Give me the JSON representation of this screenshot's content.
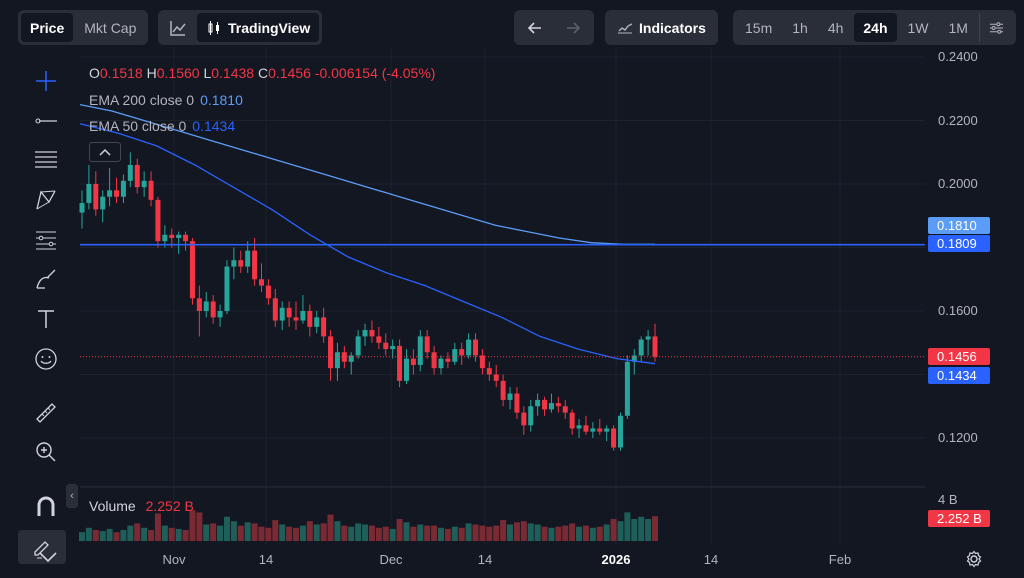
{
  "topbar": {
    "price_label": "Price",
    "mktcap_label": "Mkt Cap",
    "tradingview_label": "TradingView",
    "indicators_label": "Indicators",
    "timeframes": [
      "15m",
      "1h",
      "4h",
      "24h",
      "1W",
      "1M"
    ],
    "active_timeframe": "24h"
  },
  "legend": {
    "o_label": "O",
    "o": "0.1518",
    "h_label": "H",
    "h": "0.1560",
    "l_label": "L",
    "l": "0.1438",
    "c_label": "C",
    "c": "0.1456",
    "change": "-0.006154 (-4.05%)",
    "ema200_label": "EMA 200 close 0",
    "ema200_value": "0.1810",
    "ema50_label": "EMA 50 close 0",
    "ema50_value": "0.1434"
  },
  "volume_legend": {
    "label": "Volume",
    "value": "2.252 B"
  },
  "price_axis": [
    "0.2400",
    "0.2200",
    "0.2000",
    "0.1600",
    "0.1200"
  ],
  "volume_axis_label": "4 B",
  "price_tags": {
    "ema200": "0.1810",
    "hline": "0.1809",
    "last": "0.1456",
    "ema50": "0.1434",
    "volume": "2.252 B"
  },
  "time_axis": [
    "Nov",
    "14",
    "Dec",
    "14",
    "2026",
    "14",
    "Feb"
  ],
  "colors": {
    "up": "#26a69a",
    "down": "#f23645",
    "ema200": "#5b9cf6",
    "ema50": "#2962ff",
    "hline": "#2962ff",
    "background": "#131722"
  },
  "tools": [
    "crosshair-icon",
    "trend-line-icon",
    "horizontal-lines-icon",
    "pattern-icon",
    "fib-icon",
    "brush-icon",
    "text-icon",
    "emoji-icon",
    "ruler-icon",
    "zoom-icon",
    "magnet-icon",
    "lock-draw-icon"
  ],
  "chart_data": {
    "type": "candlestick",
    "y_range": [
      0.105,
      0.245
    ],
    "candles": [
      [
        0.191,
        0.198,
        0.186,
        0.194
      ],
      [
        0.194,
        0.206,
        0.192,
        0.2
      ],
      [
        0.2,
        0.204,
        0.19,
        0.192
      ],
      [
        0.192,
        0.198,
        0.188,
        0.196
      ],
      [
        0.196,
        0.205,
        0.193,
        0.198
      ],
      [
        0.198,
        0.202,
        0.194,
        0.196
      ],
      [
        0.196,
        0.203,
        0.194,
        0.201
      ],
      [
        0.201,
        0.21,
        0.199,
        0.206
      ],
      [
        0.206,
        0.208,
        0.197,
        0.199
      ],
      [
        0.199,
        0.204,
        0.196,
        0.201
      ],
      [
        0.201,
        0.204,
        0.193,
        0.195
      ],
      [
        0.195,
        0.196,
        0.18,
        0.182
      ],
      [
        0.182,
        0.187,
        0.18,
        0.184
      ],
      [
        0.184,
        0.186,
        0.18,
        0.183
      ],
      [
        0.183,
        0.185,
        0.178,
        0.184
      ],
      [
        0.184,
        0.185,
        0.179,
        0.182
      ],
      [
        0.182,
        0.183,
        0.162,
        0.164
      ],
      [
        0.164,
        0.168,
        0.152,
        0.16
      ],
      [
        0.16,
        0.166,
        0.158,
        0.163
      ],
      [
        0.163,
        0.165,
        0.156,
        0.158
      ],
      [
        0.158,
        0.162,
        0.155,
        0.16
      ],
      [
        0.16,
        0.176,
        0.159,
        0.174
      ],
      [
        0.174,
        0.18,
        0.17,
        0.176
      ],
      [
        0.176,
        0.179,
        0.172,
        0.174
      ],
      [
        0.174,
        0.182,
        0.172,
        0.179
      ],
      [
        0.179,
        0.183,
        0.168,
        0.17
      ],
      [
        0.17,
        0.175,
        0.166,
        0.168
      ],
      [
        0.168,
        0.17,
        0.162,
        0.164
      ],
      [
        0.164,
        0.167,
        0.155,
        0.157
      ],
      [
        0.157,
        0.163,
        0.154,
        0.161
      ],
      [
        0.161,
        0.163,
        0.155,
        0.158
      ],
      [
        0.158,
        0.163,
        0.154,
        0.157
      ],
      [
        0.157,
        0.165,
        0.156,
        0.16
      ],
      [
        0.16,
        0.162,
        0.152,
        0.155
      ],
      [
        0.155,
        0.16,
        0.153,
        0.158
      ],
      [
        0.158,
        0.161,
        0.15,
        0.152
      ],
      [
        0.152,
        0.154,
        0.138,
        0.142
      ],
      [
        0.142,
        0.15,
        0.138,
        0.147
      ],
      [
        0.147,
        0.149,
        0.142,
        0.144
      ],
      [
        0.144,
        0.147,
        0.14,
        0.146
      ],
      [
        0.146,
        0.154,
        0.145,
        0.152
      ],
      [
        0.152,
        0.156,
        0.149,
        0.154
      ],
      [
        0.154,
        0.157,
        0.15,
        0.152
      ],
      [
        0.152,
        0.155,
        0.148,
        0.15
      ],
      [
        0.15,
        0.153,
        0.146,
        0.148
      ],
      [
        0.148,
        0.151,
        0.145,
        0.149
      ],
      [
        0.149,
        0.151,
        0.136,
        0.138
      ],
      [
        0.138,
        0.148,
        0.137,
        0.145
      ],
      [
        0.145,
        0.148,
        0.14,
        0.143
      ],
      [
        0.143,
        0.154,
        0.141,
        0.152
      ],
      [
        0.152,
        0.154,
        0.145,
        0.147
      ],
      [
        0.147,
        0.149,
        0.14,
        0.142
      ],
      [
        0.142,
        0.146,
        0.14,
        0.145
      ],
      [
        0.145,
        0.147,
        0.142,
        0.144
      ],
      [
        0.144,
        0.15,
        0.143,
        0.148
      ],
      [
        0.148,
        0.15,
        0.143,
        0.146
      ],
      [
        0.146,
        0.153,
        0.145,
        0.151
      ],
      [
        0.151,
        0.153,
        0.144,
        0.146
      ],
      [
        0.146,
        0.148,
        0.14,
        0.142
      ],
      [
        0.142,
        0.144,
        0.138,
        0.14
      ],
      [
        0.14,
        0.143,
        0.136,
        0.138
      ],
      [
        0.138,
        0.14,
        0.13,
        0.132
      ],
      [
        0.132,
        0.136,
        0.129,
        0.134
      ],
      [
        0.134,
        0.136,
        0.126,
        0.128
      ],
      [
        0.128,
        0.13,
        0.121,
        0.124
      ],
      [
        0.124,
        0.132,
        0.122,
        0.13
      ],
      [
        0.13,
        0.134,
        0.127,
        0.132
      ],
      [
        0.132,
        0.133,
        0.127,
        0.129
      ],
      [
        0.129,
        0.134,
        0.128,
        0.131
      ],
      [
        0.131,
        0.133,
        0.128,
        0.13
      ],
      [
        0.13,
        0.132,
        0.126,
        0.128
      ],
      [
        0.128,
        0.129,
        0.121,
        0.123
      ],
      [
        0.123,
        0.126,
        0.12,
        0.124
      ],
      [
        0.124,
        0.127,
        0.121,
        0.122
      ],
      [
        0.122,
        0.125,
        0.12,
        0.123
      ],
      [
        0.123,
        0.126,
        0.121,
        0.122
      ],
      [
        0.122,
        0.124,
        0.119,
        0.123
      ],
      [
        0.123,
        0.124,
        0.116,
        0.117
      ],
      [
        0.117,
        0.128,
        0.116,
        0.127
      ],
      [
        0.127,
        0.146,
        0.126,
        0.144
      ],
      [
        0.144,
        0.148,
        0.14,
        0.146
      ],
      [
        0.146,
        0.152,
        0.144,
        0.151
      ],
      [
        0.151,
        0.154,
        0.146,
        0.152
      ],
      [
        0.152,
        0.156,
        0.144,
        0.1456
      ]
    ],
    "volume_range": [
      0,
      4
    ],
    "volumes": [
      0.8,
      1.2,
      1.0,
      0.9,
      1.1,
      0.8,
      1.0,
      1.4,
      1.6,
      1.2,
      1.0,
      2.5,
      1.4,
      1.2,
      1.1,
      1.0,
      2.8,
      2.6,
      1.5,
      1.6,
      1.4,
      2.2,
      1.8,
      1.4,
      1.7,
      1.6,
      1.3,
      1.2,
      1.9,
      1.5,
      1.3,
      1.2,
      1.4,
      1.8,
      1.5,
      1.6,
      2.4,
      1.8,
      1.4,
      1.3,
      1.6,
      1.5,
      1.4,
      1.2,
      1.3,
      1.1,
      2.0,
      1.7,
      1.3,
      1.5,
      1.4,
      1.4,
      1.2,
      1.1,
      1.3,
      1.2,
      1.6,
      1.5,
      1.4,
      1.3,
      1.4,
      1.9,
      1.5,
      1.7,
      1.8,
      1.6,
      1.5,
      1.3,
      1.2,
      1.3,
      1.4,
      1.6,
      1.3,
      1.4,
      1.2,
      1.3,
      1.5,
      2.0,
      1.8,
      2.6,
      2.0,
      2.2,
      2.0,
      2.252
    ],
    "ema200": [
      0.225,
      0.223,
      0.22,
      0.217,
      0.214,
      0.211,
      0.208,
      0.205,
      0.202,
      0.199,
      0.196,
      0.193,
      0.19,
      0.187,
      0.185,
      0.183,
      0.1815,
      0.181,
      0.181
    ],
    "ema50": [
      0.219,
      0.216,
      0.212,
      0.206,
      0.199,
      0.192,
      0.184,
      0.177,
      0.172,
      0.168,
      0.163,
      0.158,
      0.152,
      0.148,
      0.145,
      0.1434
    ],
    "hline": 0.1809,
    "last": 0.1456
  }
}
